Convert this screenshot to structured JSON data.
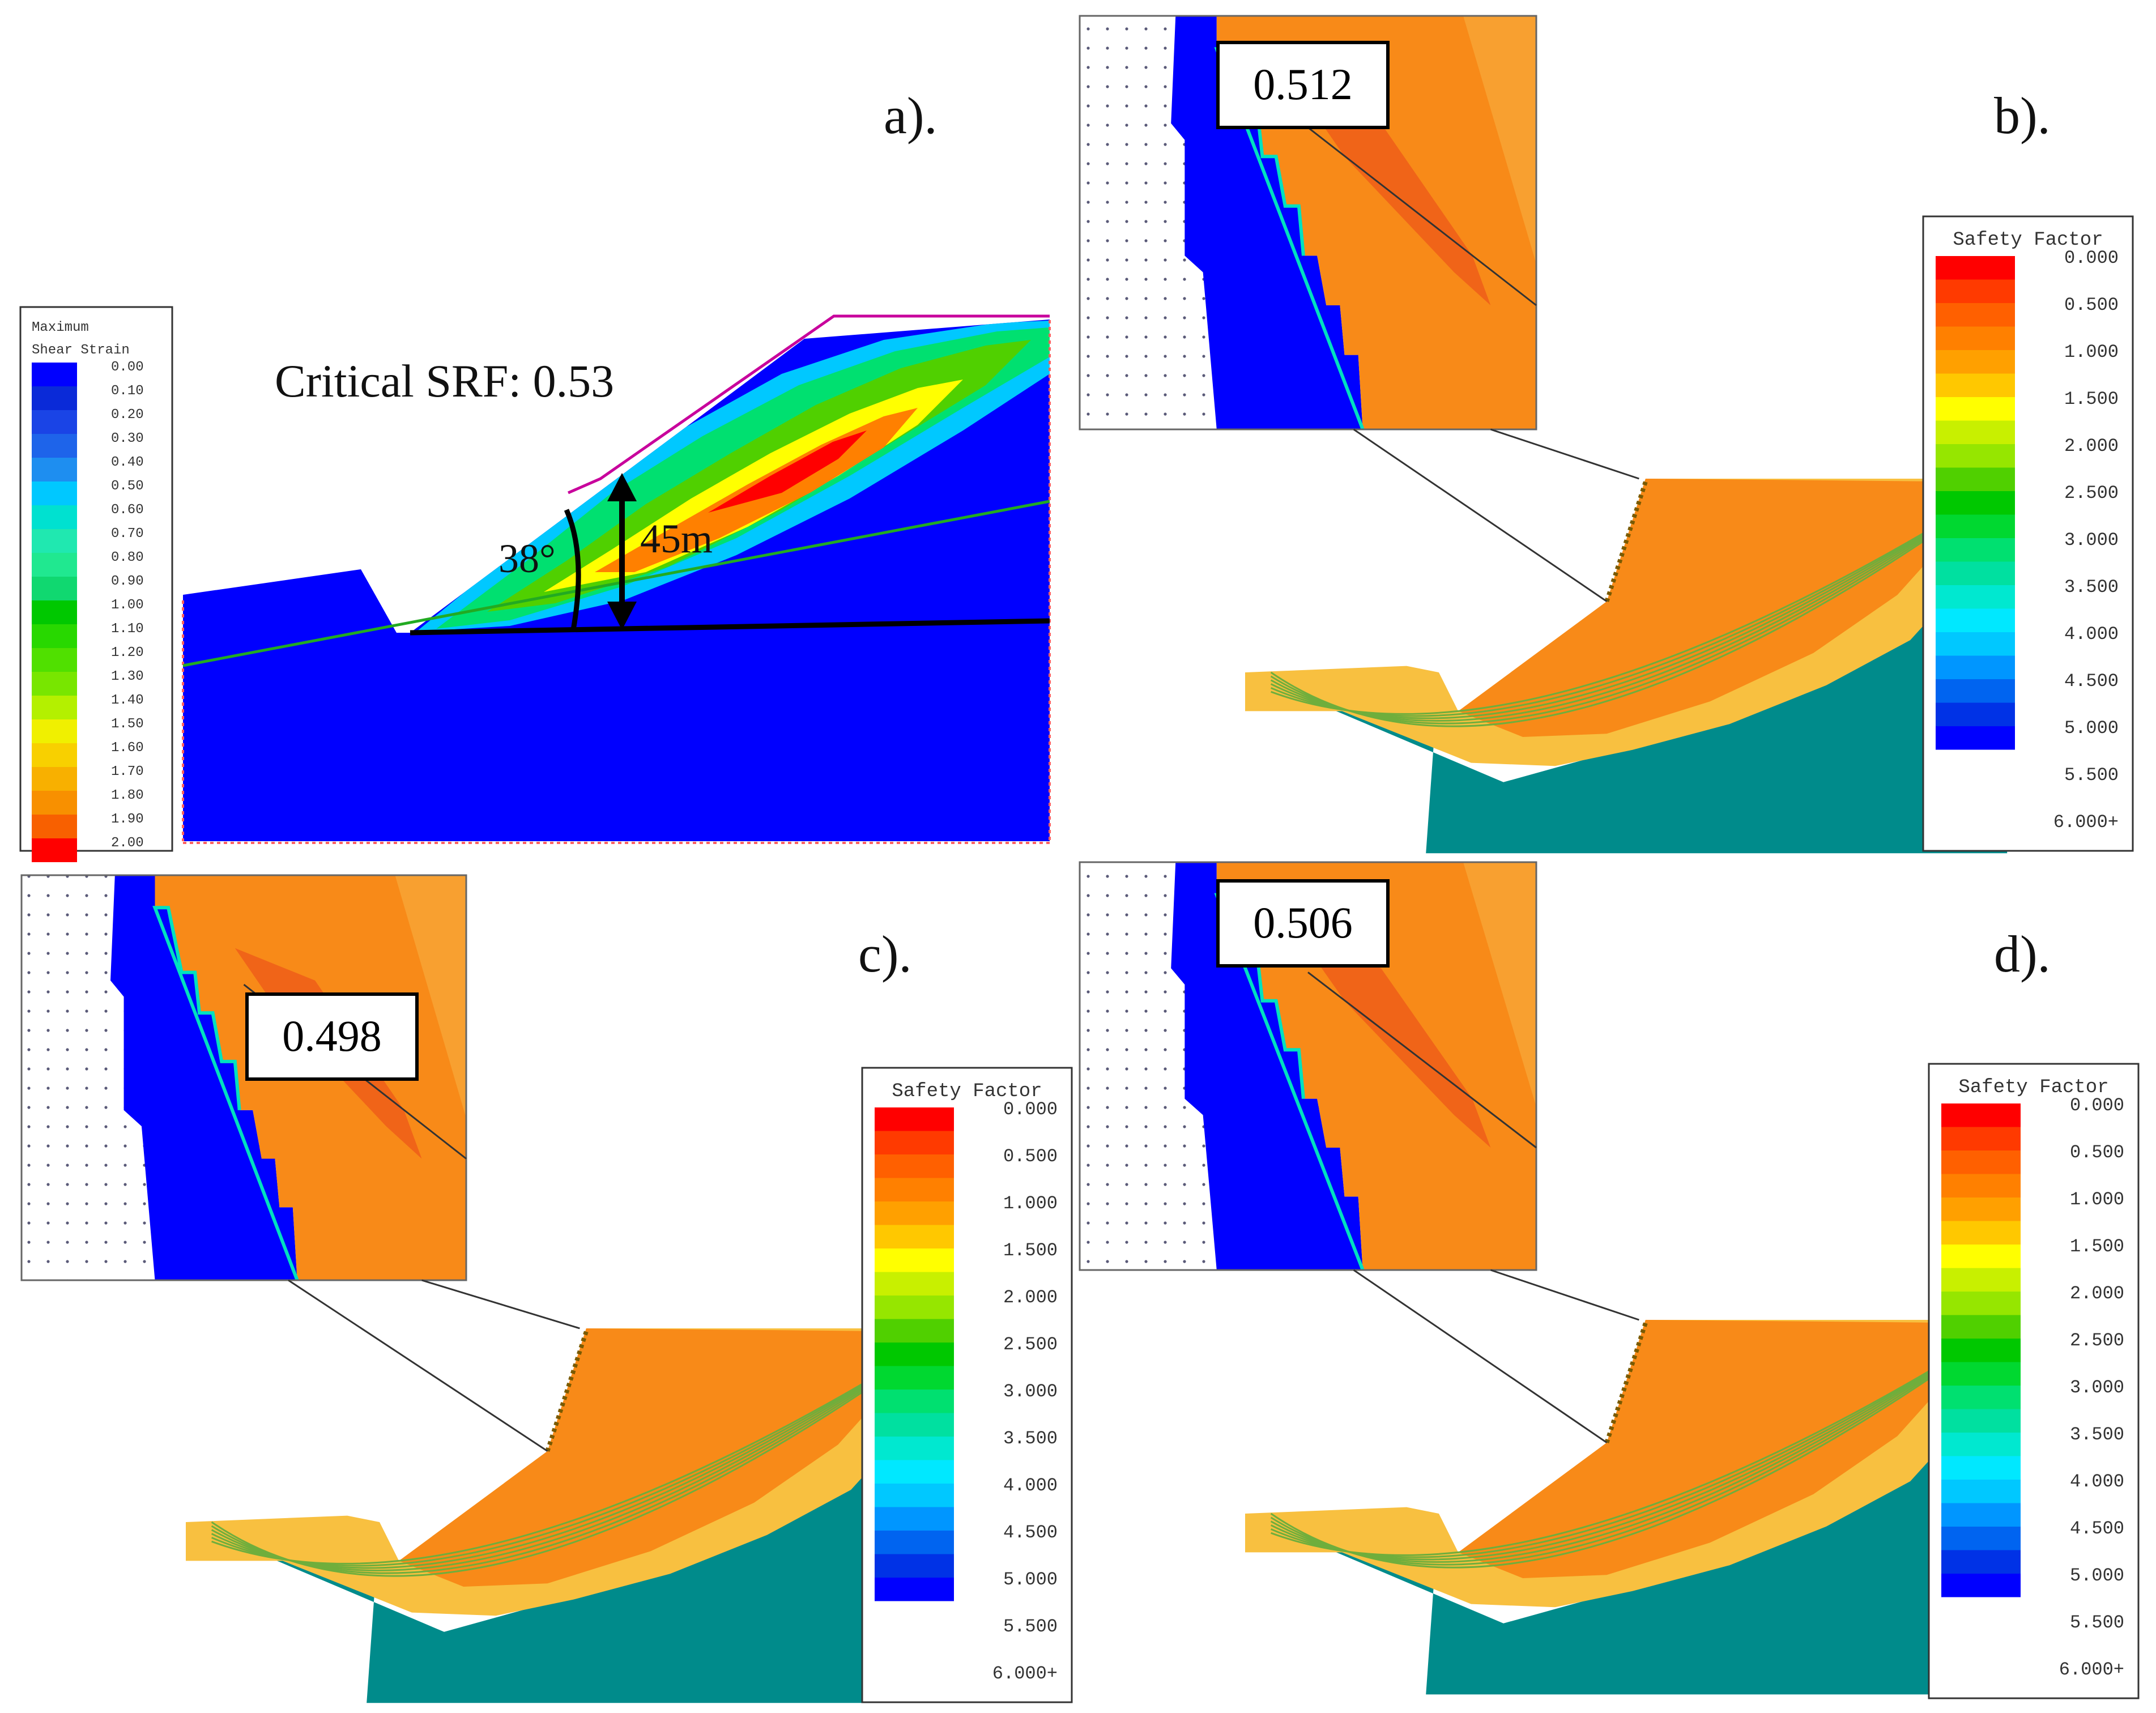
{
  "colors": {
    "strain_scale": [
      "#0000ff",
      "#0a2ad8",
      "#1a44e6",
      "#1e64ea",
      "#1e8ef0",
      "#00c8ff",
      "#00e1d0",
      "#20e8b0",
      "#20e890",
      "#10d870",
      "#00c800",
      "#28d800",
      "#50e000",
      "#78e600",
      "#b4f000",
      "#f0f000",
      "#f8d000",
      "#f8b000",
      "#f89000",
      "#f86000",
      "#ff0000"
    ],
    "sf_scale": [
      "#ff0000",
      "#ff3a00",
      "#ff6000",
      "#ff8000",
      "#ffa000",
      "#ffc800",
      "#ffff00",
      "#c8f000",
      "#96e600",
      "#50d000",
      "#00c800",
      "#00d830",
      "#00e070",
      "#00e0a0",
      "#00e8d0",
      "#00e8ff",
      "#00c8ff",
      "#0096ff",
      "#0064f0",
      "#0032e6",
      "#0000ff"
    ],
    "bedrock": "#008b8b",
    "slope_orange": "#f88a18",
    "slope_yellow": "#f8c040",
    "model_blue": "#0000ff",
    "boundary_magenta": "#c8009c",
    "water_line": "#22aa22"
  },
  "panel_a": {
    "label": "a).",
    "legend": {
      "title_line1": "Maximum",
      "title_line2": "Shear Strain",
      "ticks": [
        "0.00",
        "0.10",
        "0.20",
        "0.30",
        "0.40",
        "0.50",
        "0.60",
        "0.70",
        "0.80",
        "0.90",
        "1.00",
        "1.10",
        "1.20",
        "1.30",
        "1.40",
        "1.50",
        "1.60",
        "1.70",
        "1.80",
        "1.90",
        "2.00"
      ]
    },
    "critical_srf": "Critical SRF: 0.53",
    "angle": "38°",
    "height": "45m"
  },
  "panel_b": {
    "label": "b).",
    "value": "0.512"
  },
  "panel_c": {
    "label": "c).",
    "value": "0.498"
  },
  "panel_d": {
    "label": "d).",
    "value": "0.506"
  },
  "sf_legend": {
    "title": "Safety Factor",
    "ticks": [
      "0.000",
      "0.500",
      "1.000",
      "1.500",
      "2.000",
      "2.500",
      "3.000",
      "3.500",
      "4.000",
      "4.500",
      "5.000",
      "5.500",
      "6.000+"
    ]
  }
}
